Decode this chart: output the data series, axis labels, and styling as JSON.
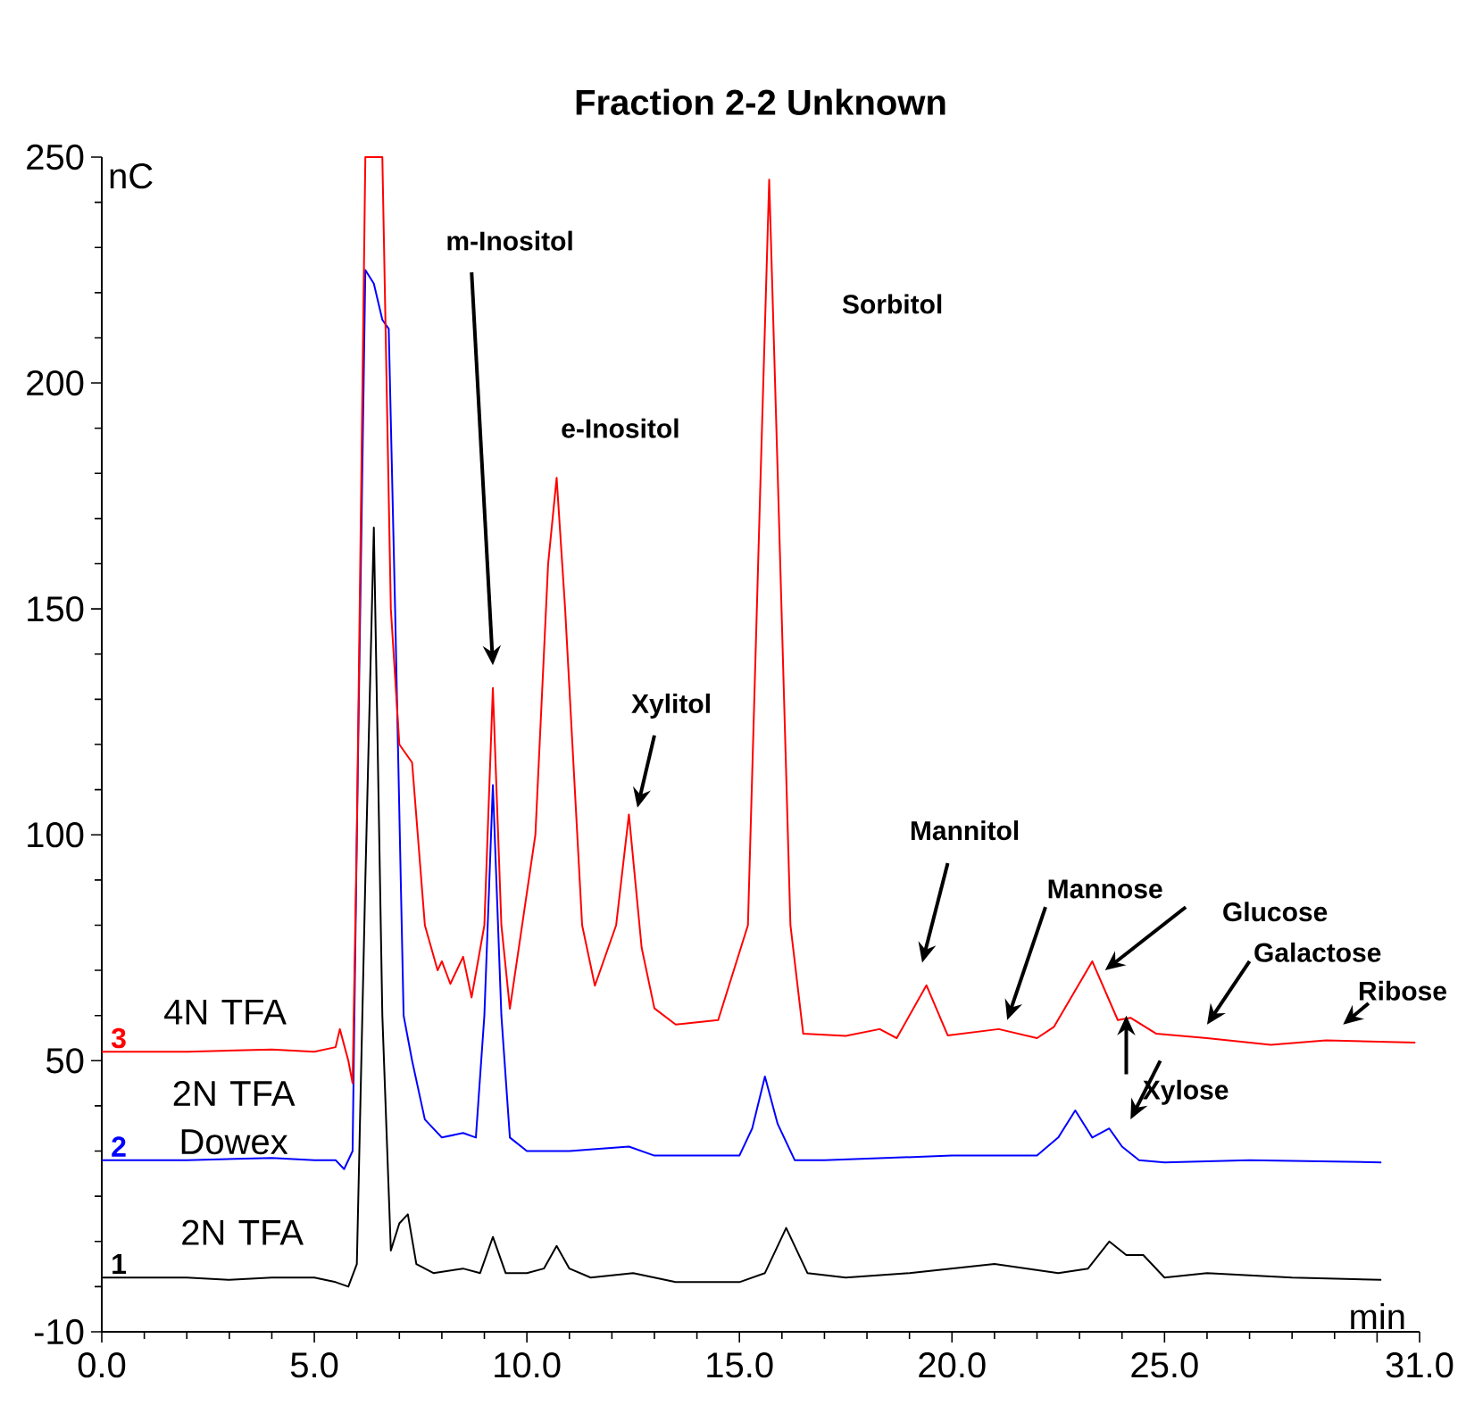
{
  "chart_data": {
    "type": "line",
    "title": "Fraction 2-2 Unknown",
    "xlabel": "min",
    "ylabel": "nC",
    "xlim": [
      0,
      31
    ],
    "ylim": [
      -10,
      250
    ],
    "xticks": [
      {
        "value": 0,
        "label": "0.0"
      },
      {
        "value": 5,
        "label": "5.0"
      },
      {
        "value": 10,
        "label": "10.0"
      },
      {
        "value": 15,
        "label": "15.0"
      },
      {
        "value": 20,
        "label": "20.0"
      },
      {
        "value": 25,
        "label": "25.0"
      },
      {
        "value": 30,
        "label": null
      },
      {
        "value": 31,
        "label": "31.0"
      }
    ],
    "yticks": [
      -10,
      50,
      100,
      150,
      200,
      250
    ],
    "series": [
      {
        "name": "2N TFA",
        "color": "#000000",
        "x": [
          0,
          1,
          2,
          3,
          4,
          5,
          5.5,
          5.8,
          6.0,
          6.2,
          6.4,
          6.6,
          6.8,
          7.0,
          7.2,
          7.4,
          7.8,
          8.5,
          8.9,
          9.2,
          9.5,
          10.0,
          10.4,
          10.7,
          11.0,
          11.5,
          12.5,
          13.5,
          15.0,
          15.6,
          16.1,
          16.6,
          17.5,
          19.0,
          21.0,
          22.5,
          23.2,
          23.7,
          24.1,
          24.5,
          25.0,
          26.0,
          28.0,
          30.1
        ],
        "values": [
          2,
          2,
          2,
          1.5,
          2,
          2,
          1,
          0,
          5,
          90,
          168,
          60,
          8,
          14,
          16,
          5,
          3,
          4,
          3,
          11,
          3,
          3,
          4,
          9,
          4,
          2,
          3,
          1,
          1,
          3,
          13,
          3,
          2,
          3,
          5,
          3,
          4,
          10,
          7,
          7,
          2,
          3,
          2,
          1.5
        ]
      },
      {
        "name": "2N TFA Dowex",
        "color": "#0000ff",
        "x": [
          0,
          2,
          4,
          5,
          5.5,
          5.7,
          5.9,
          6.0,
          6.2,
          6.4,
          6.6,
          6.75,
          6.9,
          7.1,
          7.3,
          7.6,
          8.0,
          8.5,
          8.8,
          9.0,
          9.2,
          9.4,
          9.6,
          10.0,
          11.0,
          12.4,
          13.0,
          15.0,
          15.3,
          15.6,
          15.9,
          16.3,
          17.0,
          20.0,
          22.0,
          22.5,
          22.9,
          23.3,
          23.7,
          24.0,
          24.4,
          25.0,
          27.0,
          30.1
        ],
        "values": [
          28,
          28,
          28.5,
          28,
          28,
          26,
          30,
          100,
          225,
          222,
          214,
          212,
          150,
          60,
          50,
          37,
          33,
          34,
          33,
          60,
          111,
          60,
          33,
          30,
          30,
          31,
          29,
          29,
          35,
          46.5,
          36,
          28,
          28,
          29,
          29,
          33,
          39,
          33,
          35,
          31,
          28,
          27.5,
          28,
          27.5
        ]
      },
      {
        "name": "4N TFA",
        "color": "#ff0000",
        "x": [
          0,
          2,
          4,
          5,
          5.5,
          5.6,
          5.8,
          5.9,
          6.0,
          6.2,
          6.4,
          6.6,
          6.8,
          7.0,
          7.3,
          7.6,
          7.9,
          8.0,
          8.2,
          8.5,
          8.7,
          9.0,
          9.2,
          9.4,
          9.6,
          10.2,
          10.5,
          10.7,
          10.9,
          11.3,
          11.6,
          12.1,
          12.4,
          12.7,
          13.0,
          13.5,
          14.5,
          15.2,
          15.5,
          15.7,
          15.9,
          16.2,
          16.5,
          17.5,
          18.3,
          18.7,
          19.4,
          19.9,
          21.1,
          22.0,
          22.4,
          23.3,
          23.9,
          24.2,
          24.8,
          26.0,
          27.5,
          28.8,
          30.9
        ],
        "values": [
          52,
          52,
          52.5,
          52,
          53,
          57,
          50,
          45,
          100,
          250,
          250,
          250,
          150,
          120,
          116,
          80,
          70,
          72,
          67,
          73,
          64,
          80,
          132.5,
          80,
          61.5,
          100,
          160,
          179,
          150,
          80,
          66.6,
          80,
          104.5,
          75,
          61.6,
          58,
          59,
          80,
          180,
          245,
          180,
          80,
          56,
          55.5,
          57,
          55,
          66.7,
          55.6,
          57,
          55,
          57.5,
          72,
          59,
          59.5,
          56,
          55,
          53.5,
          54.5,
          54
        ]
      }
    ],
    "annotations": [
      "m-Inositol",
      "e-Inositol",
      "Sorbitol",
      "Xylitol",
      "Mannitol",
      "Mannose",
      "Glucose",
      "Galactose",
      "Ribose",
      {
        "text": "Xylose",
        "x": 24.1,
        "y": 59
      },
      "3",
      "2",
      "1"
    ]
  }
}
